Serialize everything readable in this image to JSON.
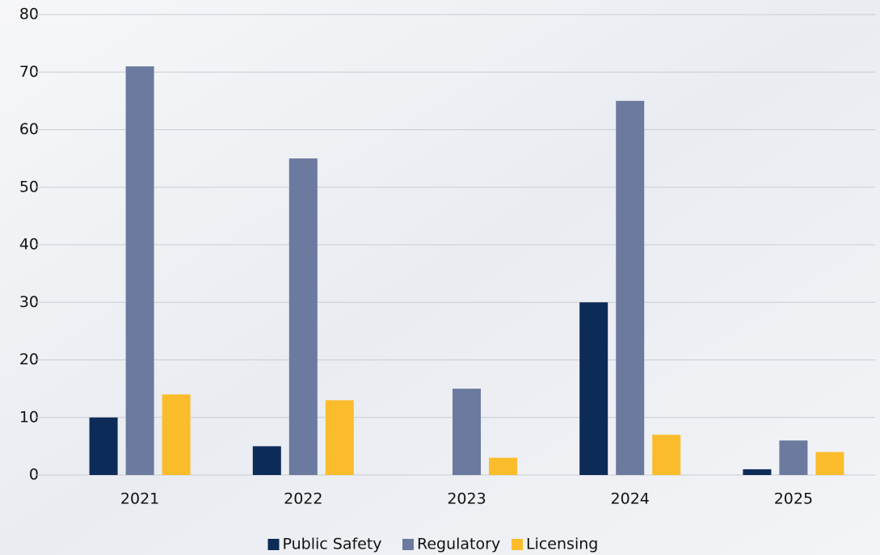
{
  "chart_data": {
    "type": "bar",
    "categories": [
      "2021",
      "2022",
      "2023",
      "2024",
      "2025"
    ],
    "series": [
      {
        "name": "Public Safety",
        "color": "#0d2b57",
        "values": [
          10,
          5,
          0,
          30,
          1
        ]
      },
      {
        "name": "Regulatory",
        "color": "#6b7a9e",
        "values": [
          71,
          55,
          15,
          65,
          6
        ]
      },
      {
        "name": "Licensing",
        "color": "#fbbc2c",
        "values": [
          14,
          13,
          3,
          7,
          4
        ]
      }
    ],
    "ylim": [
      0,
      80
    ],
    "yticks": [
      0,
      10,
      20,
      30,
      40,
      50,
      60,
      70,
      80
    ],
    "grid": true,
    "legend": "bottom"
  }
}
